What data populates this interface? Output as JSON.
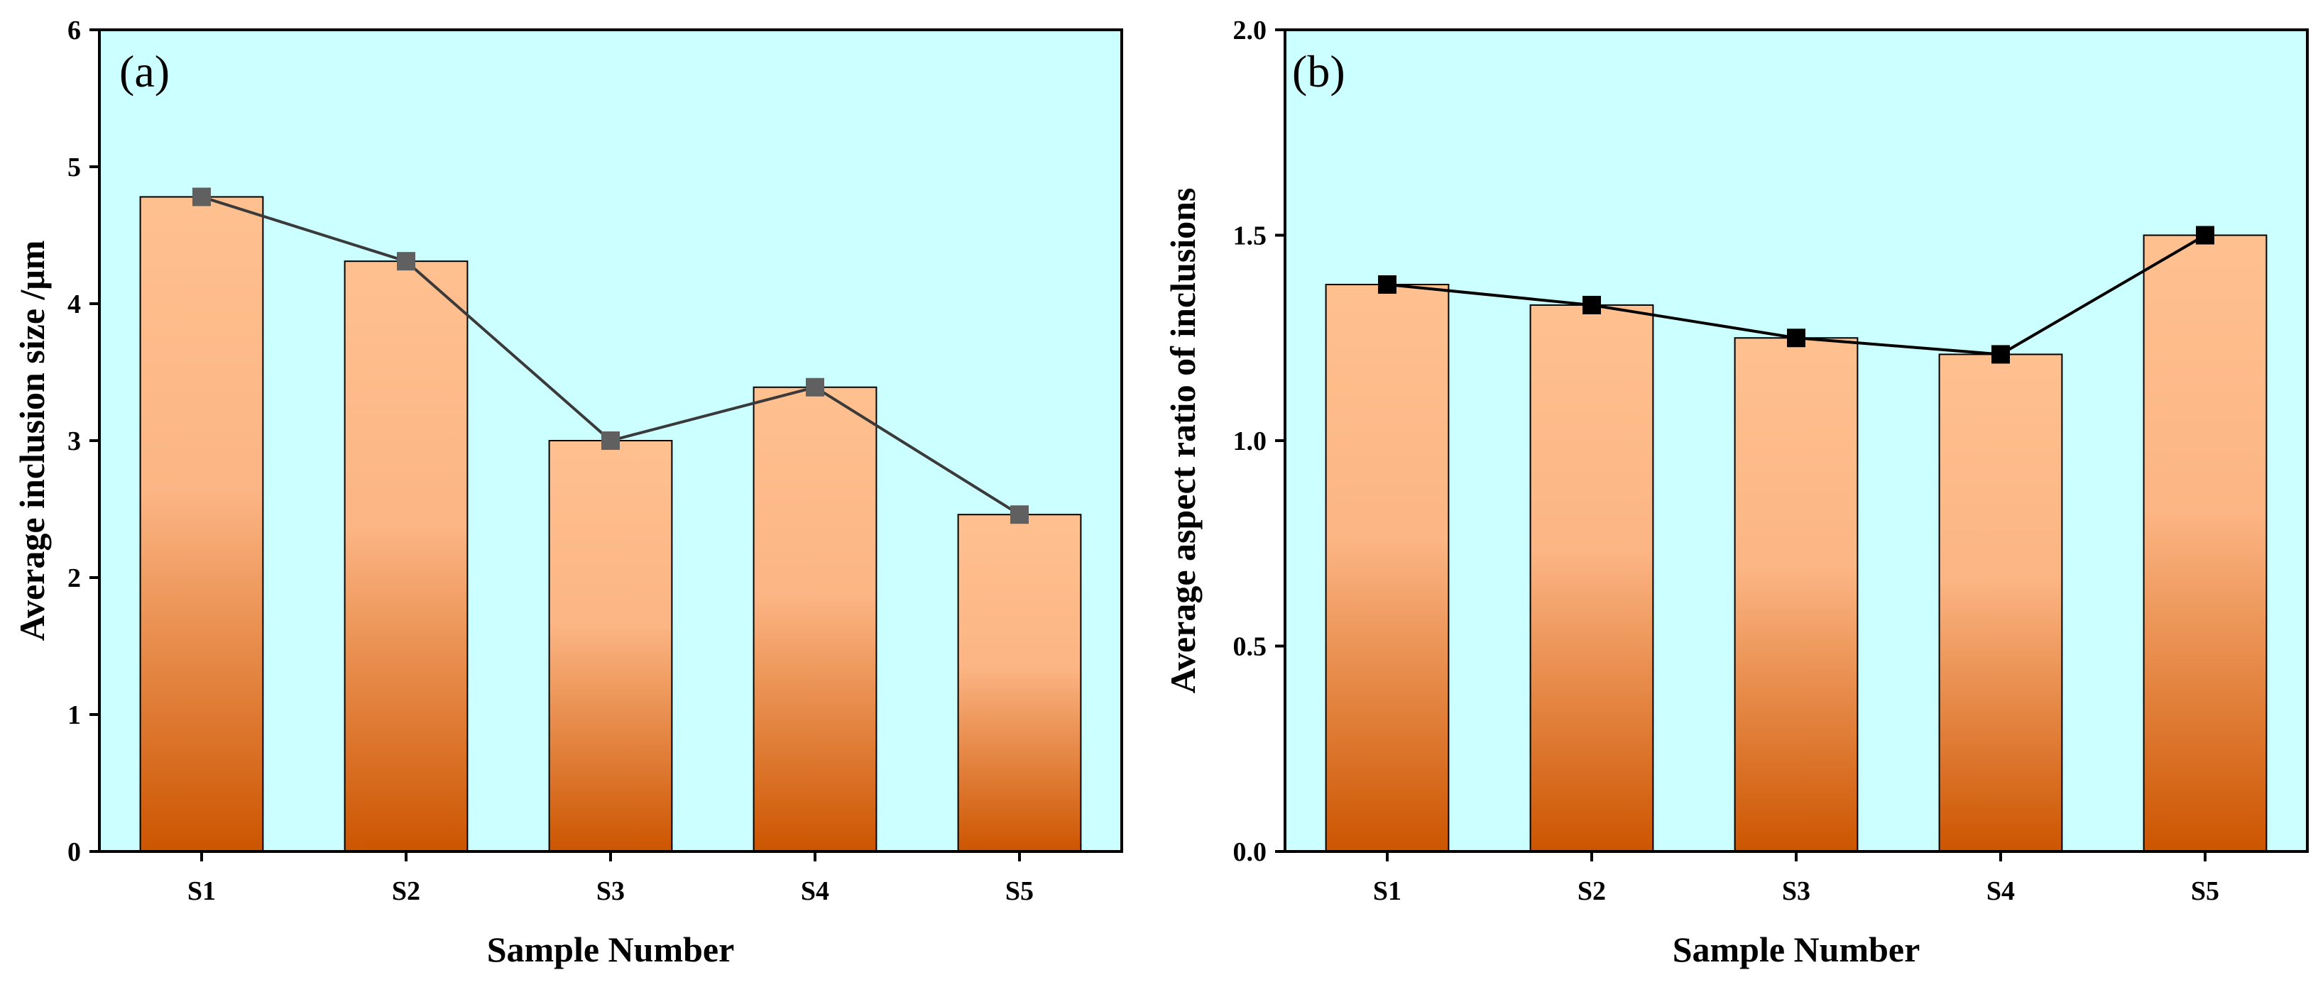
{
  "chart_data": [
    {
      "type": "bar",
      "panel_label": "(a)",
      "categories": [
        "S1",
        "S2",
        "S3",
        "S4",
        "S5"
      ],
      "values": [
        4.78,
        4.31,
        3.0,
        3.39,
        2.46
      ],
      "line_values": [
        4.78,
        4.31,
        3.0,
        3.39,
        2.46
      ],
      "xlabel": "Sample Number",
      "ylabel": "Average inclusion size /μm",
      "ylim": [
        0,
        6
      ],
      "yticks": [
        "0",
        "1",
        "2",
        "3",
        "4",
        "5",
        "6"
      ],
      "ytick_values": [
        0,
        1,
        2,
        3,
        4,
        5,
        6
      ],
      "grid": false,
      "colors": {
        "background": "#ccffff",
        "bar_top": "#ffc090",
        "bar_mid": "#fcb584",
        "bar_bottom": "#cc5500",
        "line": "#3a3a3a",
        "marker": "#606060"
      }
    },
    {
      "type": "bar",
      "panel_label": "(b)",
      "categories": [
        "S1",
        "S2",
        "S3",
        "S4",
        "S5"
      ],
      "values": [
        1.38,
        1.33,
        1.25,
        1.21,
        1.5
      ],
      "line_values": [
        1.38,
        1.33,
        1.25,
        1.21,
        1.5
      ],
      "xlabel": "Sample Number",
      "ylabel": "Average aspect ratio of inclusions",
      "ylim": [
        0,
        2.0
      ],
      "yticks": [
        "0.0",
        "0.5",
        "1.0",
        "1.5",
        "2.0"
      ],
      "ytick_values": [
        0,
        0.5,
        1.0,
        1.5,
        2.0
      ],
      "grid": false,
      "colors": {
        "background": "#ccffff",
        "bar_top": "#ffc090",
        "bar_mid": "#fcb584",
        "bar_bottom": "#cc5500",
        "line": "#000000",
        "marker": "#000000"
      }
    }
  ]
}
